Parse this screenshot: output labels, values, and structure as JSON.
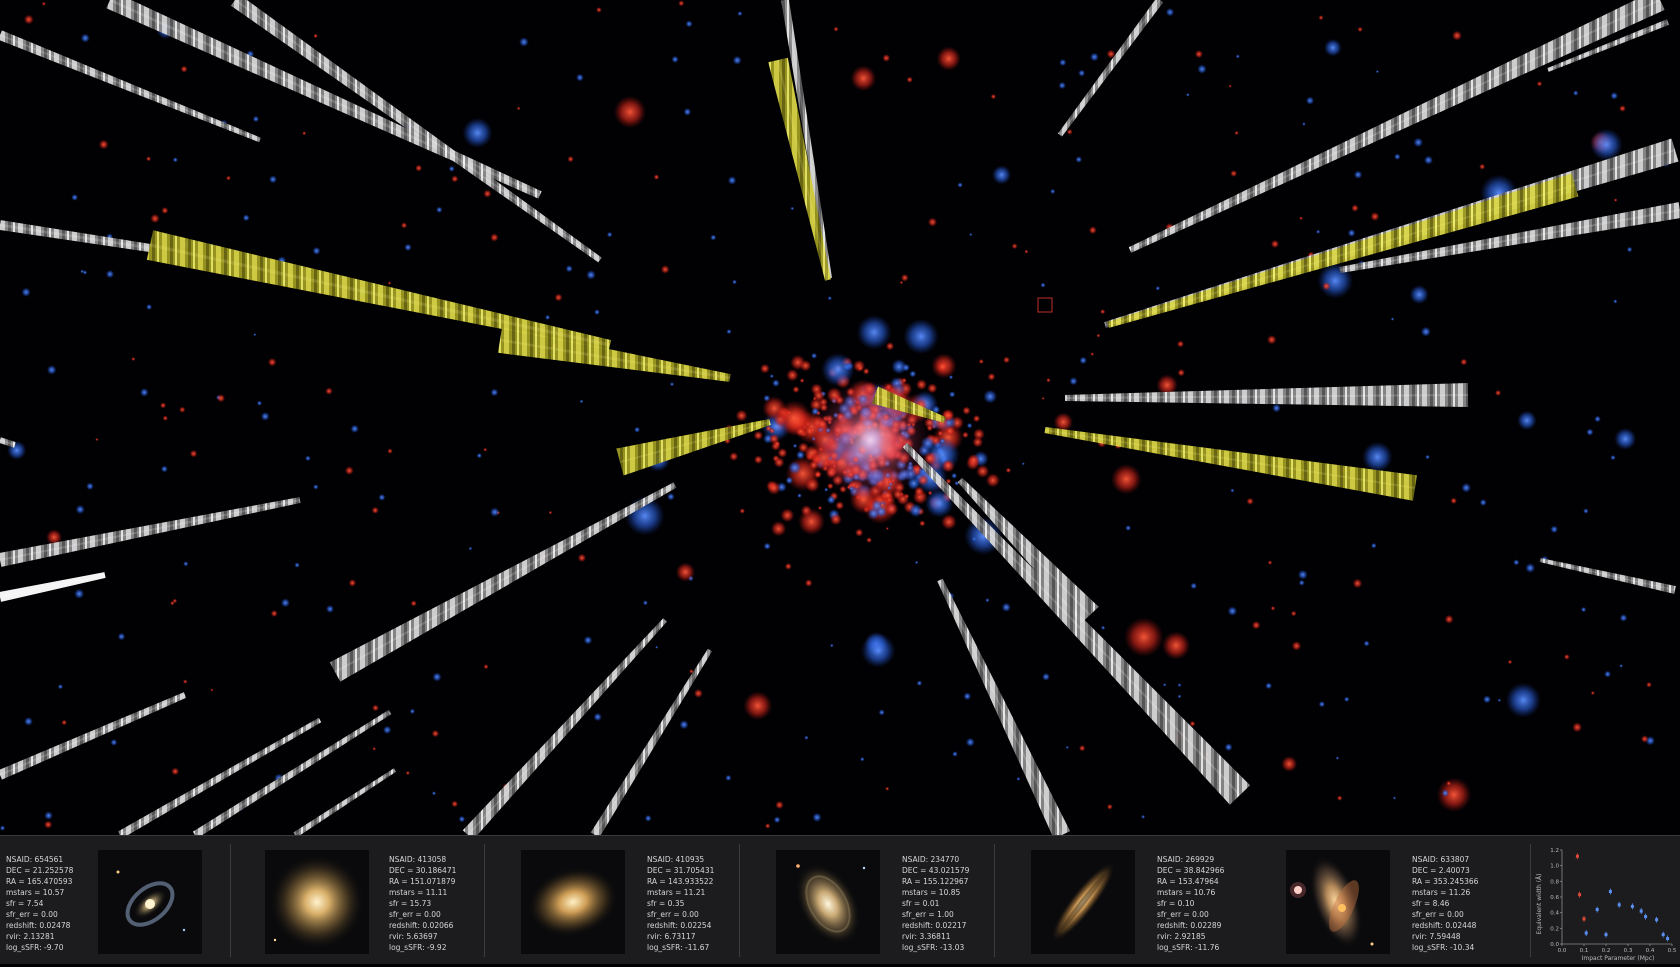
{
  "colors": {
    "background": "#010104",
    "panel": "#1c1c1e",
    "sightline_gray": "#b4b4b4",
    "sightline_yellow": "#c9c43a",
    "galaxy_red": "#e23a2a",
    "galaxy_blue": "#2d6fe6"
  },
  "galaxies": [
    {
      "nsaid": "NSAID: 654561",
      "dec": "DEC = 21.252578",
      "ra": "RA = 165.470593",
      "mstars": "mstars = 10.57",
      "sfr": "sfr = 7.54",
      "sfr_err": "sfr_err = 0.00",
      "redshift": "redshift: 0.02478",
      "rvir": "rvir: 2.13281",
      "log_ssfr": "log_sSFR: -9.70",
      "thumbnail": "barred-spiral-galaxy-image"
    },
    {
      "nsaid": "NSAID: 413058",
      "dec": "DEC = 30.186471",
      "ra": "RA = 151.071879",
      "mstars": "mstars = 11.11",
      "sfr": "sfr = 15.73",
      "sfr_err": "sfr_err = 0.00",
      "redshift": "redshift: 0.02066",
      "rvir": "rvir: 5.63697",
      "log_ssfr": "log_sSFR: -9.92",
      "thumbnail": "elliptical-galaxy-image"
    },
    {
      "nsaid": "NSAID: 410935",
      "dec": "DEC = 31.705431",
      "ra": "RA = 143.933522",
      "mstars": "mstars = 11.21",
      "sfr": "sfr = 0.35",
      "sfr_err": "sfr_err = 0.00",
      "redshift": "redshift: 0.02254",
      "rvir": "rvir: 6.73117",
      "log_ssfr": "log_sSFR: -11.67",
      "thumbnail": "elliptical-galaxy-image"
    },
    {
      "nsaid": "NSAID: 234770",
      "dec": "DEC = 43.021579",
      "ra": "RA = 155.122967",
      "mstars": "mstars = 10.85",
      "sfr": "sfr = 0.01",
      "sfr_err": "sfr_err = 1.00",
      "redshift": "redshift: 0.02217",
      "rvir": "rvir: 3.36811",
      "log_ssfr": "log_sSFR: -13.03",
      "thumbnail": "lenticular-galaxy-image"
    },
    {
      "nsaid": "NSAID: 269929",
      "dec": "DEC = 38.842966",
      "ra": "RA = 153.47964",
      "mstars": "mstars = 10.76",
      "sfr": "sfr = 0.10",
      "sfr_err": "sfr_err = 0.00",
      "redshift": "redshift: 0.02289",
      "rvir": "rvir: 2.92185",
      "log_ssfr": "log_sSFR: -11.76",
      "thumbnail": "edge-on-galaxy-image"
    },
    {
      "nsaid": "NSAID: 633807",
      "dec": "DEC = 2.40073",
      "ra": "RA = 353.245366",
      "mstars": "mstars = 11.26",
      "sfr": "sfr = 8.46",
      "sfr_err": "sfr_err = 0.00",
      "redshift": "redshift: 0.02448",
      "rvir": "rvir: 7.59448",
      "log_ssfr": "log_sSFR: -10.34",
      "thumbnail": "merging-galaxy-image"
    }
  ],
  "mini_plot": {
    "ylabel": "Equivalent width (Å)",
    "xlabel": "Impact Parameter (Mpc)",
    "x_ticks": [
      "0.0",
      "0.1",
      "0.2",
      "0.3",
      "0.4",
      "0.5"
    ],
    "y_ticks": [
      "0.0",
      "0.2",
      "0.4",
      "0.6",
      "0.8",
      "1.0",
      "1.2"
    ],
    "xlim": [
      0,
      0.5
    ],
    "ylim": [
      0,
      1.2
    ],
    "red_points": [
      [
        0.07,
        1.12
      ],
      [
        0.08,
        0.63
      ],
      [
        0.1,
        0.32
      ]
    ],
    "blue_points": [
      [
        0.11,
        0.14
      ],
      [
        0.16,
        0.44
      ],
      [
        0.2,
        0.12
      ],
      [
        0.22,
        0.67
      ],
      [
        0.26,
        0.5
      ],
      [
        0.32,
        0.48
      ],
      [
        0.36,
        0.42
      ],
      [
        0.38,
        0.35
      ],
      [
        0.43,
        0.31
      ],
      [
        0.46,
        0.12
      ],
      [
        0.48,
        0.07
      ]
    ]
  }
}
